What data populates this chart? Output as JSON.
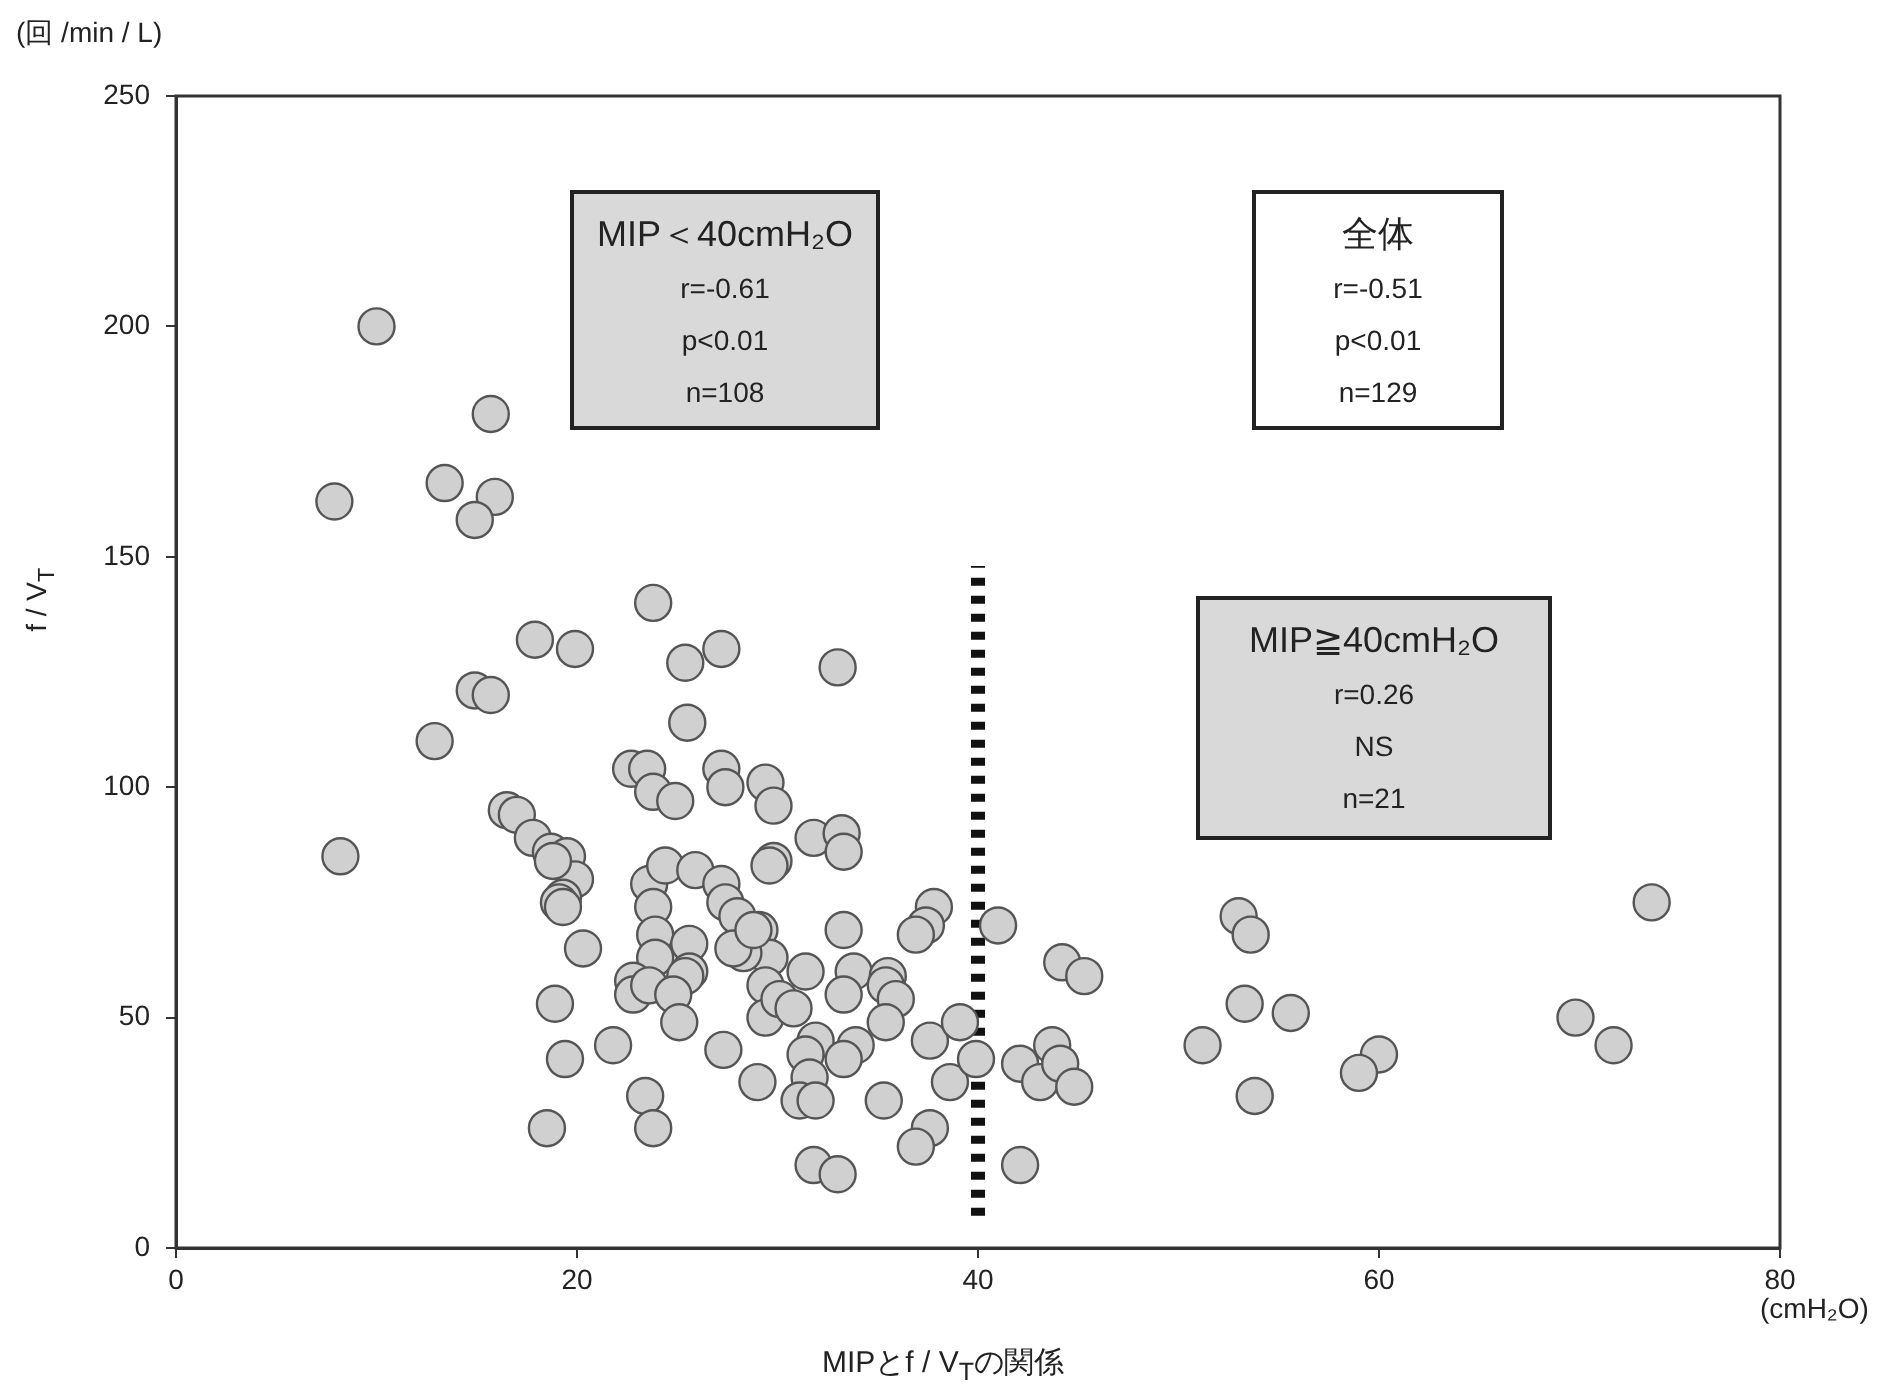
{
  "chart_data": {
    "type": "scatter",
    "title": "MIPとf / V$_{T}$の関係",
    "xlabel": "(cmH₂O)",
    "ylabel": "f / V$_{T}$",
    "annotations": [
      "(回 /min / L)",
      "MIP＜40cmH₂O\nr=-0.61\np<0.01\nn=108",
      "全体\nr=-0.51\np<0.01\nn=129",
      "MIP≧40cmH₂O\nr=0.26\nNS\nn=21"
    ],
    "xlim": [
      0,
      80
    ],
    "xticks": [
      0,
      20,
      40,
      60,
      80
    ],
    "ylim": [
      0,
      250
    ],
    "yticks": [
      0,
      50,
      100,
      150,
      200,
      250
    ],
    "grid": false,
    "legend": false,
    "marker": "circle",
    "series": [
      {
        "color": "#d0d0d0",
        "x": [
          10.0,
          15.7,
          13.4,
          15.9,
          14.9,
          7.9,
          23.8,
          17.9,
          19.9,
          25.4,
          27.2,
          14.9,
          15.7,
          12.9,
          25.5,
          22.7,
          23.5,
          23.8,
          24.9,
          16.5,
          17.0,
          17.8,
          18.7,
          19.5,
          19.9,
          19.3,
          20.3,
          8.2,
          33.0,
          27.2,
          27.4,
          29.4,
          29.8,
          31.8,
          33.2,
          33.3,
          29.8,
          29.6,
          37.8,
          37.4,
          36.9,
          41.0,
          33.3,
          23.6,
          24.4,
          25.9,
          27.2,
          27.4,
          28.0,
          29.1,
          29.6,
          28.3,
          23.8,
          23.9,
          23.9,
          25.6,
          25.6,
          31.4,
          33.8,
          35.5,
          18.8,
          19.1,
          19.3,
          25.4,
          22.8,
          22.8,
          23.6,
          24.8,
          25.1,
          18.9,
          19.4,
          21.8,
          27.3,
          27.8,
          28.8,
          29.4,
          29.4,
          30.1,
          30.8,
          31.9,
          31.4,
          33.3,
          33.9,
          33.3,
          35.4,
          35.9,
          35.4,
          37.6,
          39.1,
          38.6,
          29.0,
          31.6,
          31.1,
          31.9,
          35.3,
          37.6,
          36.9,
          23.4,
          23.8,
          18.5,
          31.8,
          33.0,
          44.2,
          45.3,
          39.9,
          42.1,
          43.7,
          43.1,
          44.1,
          44.8,
          42.1,
          53.0,
          53.6,
          53.3,
          55.6,
          51.2,
          53.8,
          60.0,
          59.0,
          73.6,
          69.8,
          71.7
        ],
        "values": [
          200,
          181,
          166,
          163,
          158,
          162,
          140,
          132,
          130,
          127,
          130,
          121,
          120,
          110,
          114,
          104,
          104,
          99,
          97,
          95,
          94,
          89,
          86,
          85,
          80,
          76,
          65,
          85,
          126,
          104,
          100,
          101,
          96,
          89,
          90,
          86,
          84,
          83,
          74,
          70,
          68,
          70,
          69,
          79,
          83,
          82,
          79,
          75,
          72,
          69,
          63,
          64,
          74,
          68,
          63,
          66,
          60,
          60,
          60,
          59,
          84,
          75,
          74,
          59,
          58,
          55,
          57,
          55,
          49,
          53,
          41,
          44,
          43,
          65,
          69,
          57,
          50,
          54,
          52,
          45,
          42,
          55,
          44,
          41,
          57,
          54,
          49,
          45,
          49,
          36,
          36,
          37,
          32,
          32,
          32,
          26,
          22,
          33,
          26,
          26,
          18,
          16,
          62,
          59,
          41,
          40,
          44,
          36,
          40,
          35,
          18,
          72,
          68,
          53,
          51,
          44,
          33,
          42,
          38,
          75,
          50,
          44
        ]
      },
      {
        "type": "line",
        "color": "#111111",
        "line_style": "dotted",
        "marker": "none",
        "x": [
          40,
          40
        ],
        "values": [
          7,
          148
        ]
      }
    ]
  }
}
